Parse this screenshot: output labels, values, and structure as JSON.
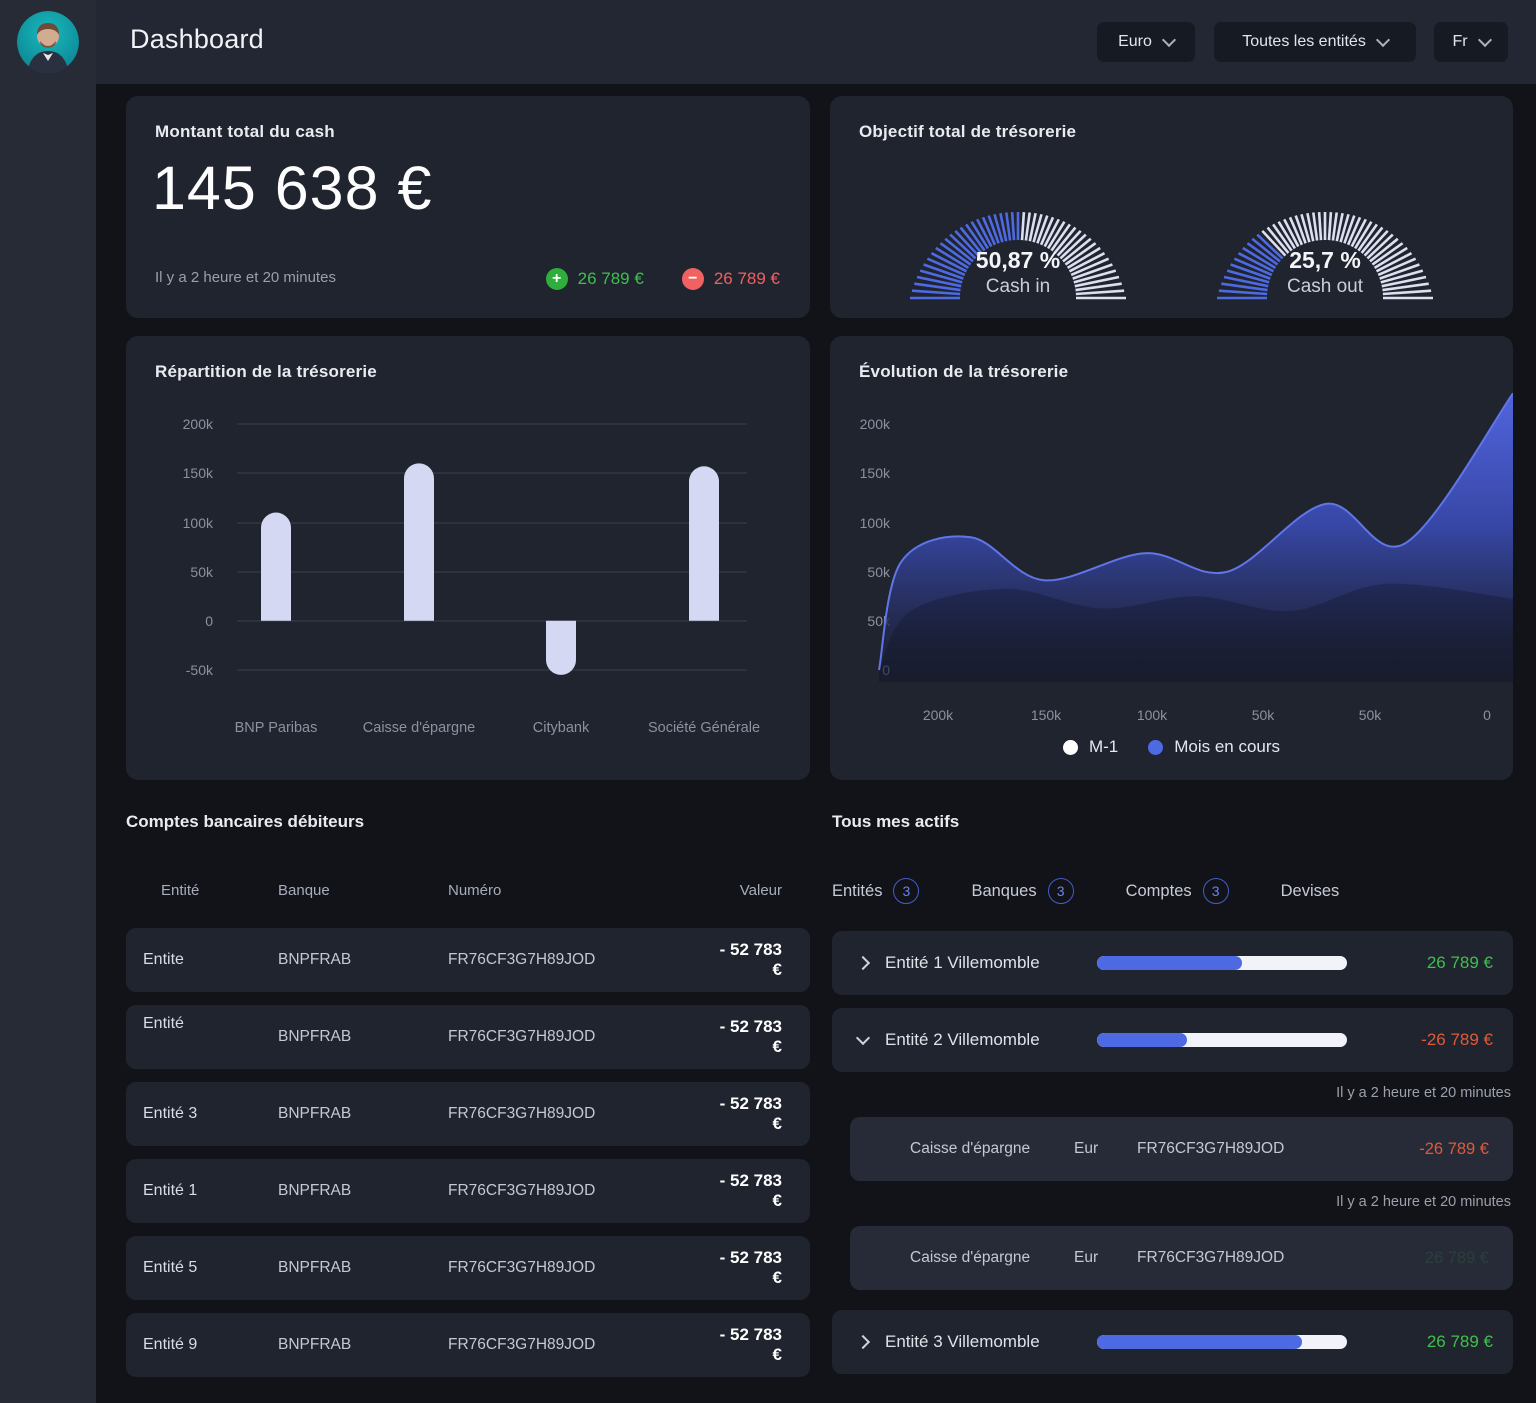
{
  "header": {
    "title": "Dashboard",
    "currency_dropdown": "Euro",
    "entities_dropdown": "Toutes les entités",
    "language_dropdown": "Fr"
  },
  "cash_card": {
    "title": "Montant total du cash",
    "amount": "145 638 €",
    "updated": "Il y a 2 heure et 20 minutes",
    "inflow": "26 789 €",
    "outflow": "26 789 €"
  },
  "debit_table": {
    "title": "Comptes bancaires débiteurs",
    "columns": [
      "Entité",
      "Banque",
      "Numéro",
      "Valeur"
    ],
    "rows": [
      {
        "entity": "Entite",
        "bank": "BNPFRAB",
        "number": "FR76CF3G7H89JOD",
        "value": "- 52 783 €"
      },
      {
        "entity": "Entité",
        "bank": "BNPFRAB",
        "number": "FR76CF3G7H89JOD",
        "value": "- 52 783 €",
        "raised": true
      },
      {
        "entity": "Entité 3",
        "bank": "BNPFRAB",
        "number": "FR76CF3G7H89JOD",
        "value": "- 52 783 €"
      },
      {
        "entity": "Entité 1",
        "bank": "BNPFRAB",
        "number": "FR76CF3G7H89JOD",
        "value": "- 52 783 €"
      },
      {
        "entity": "Entité 5",
        "bank": "BNPFRAB",
        "number": "FR76CF3G7H89JOD",
        "value": "- 52 783 €"
      },
      {
        "entity": "Entité 9",
        "bank": "BNPFRAB",
        "number": "FR76CF3G7H89JOD",
        "value": "- 52 783 €"
      }
    ]
  },
  "assets": {
    "title": "Tous mes actifs",
    "tabs": [
      {
        "label": "Entités",
        "badge": "3"
      },
      {
        "label": "Banques",
        "badge": "3"
      },
      {
        "label": "Comptes",
        "badge": "3"
      },
      {
        "label": "Devises"
      }
    ],
    "rows": [
      {
        "type": "entity",
        "expanded": false,
        "label": "Entité 1 Villemomble",
        "progress_pct": 58,
        "value": "26 789 €",
        "value_color": "green"
      },
      {
        "type": "entity",
        "expanded": true,
        "label": "Entité 2 Villemomble",
        "progress_pct": 36,
        "value": "-26 789 €",
        "value_color": "orange"
      },
      {
        "type": "timestamp",
        "text": "Il y a 2 heure et 20 minutes"
      },
      {
        "type": "account",
        "bank": "Caisse d'épargne",
        "currency": "Eur",
        "number": "FR76CF3G7H89JOD",
        "value": "-26 789 €",
        "value_color": "orange"
      },
      {
        "type": "timestamp",
        "text": "Il y a 2 heure et 20 minutes"
      },
      {
        "type": "account",
        "bank": "Caisse d'épargne",
        "currency": "Eur",
        "number": "FR76CF3G7H89JOD",
        "value": "26 789 €",
        "value_color": "ghost"
      },
      {
        "type": "entity",
        "expanded": false,
        "label": "Entité 3 Villemomble",
        "progress_pct": 82,
        "value": "26 789 €",
        "value_color": "green"
      }
    ]
  },
  "colors": {
    "accent_blue": "#4d6ae3",
    "bar_lavender": "#d5d8f3",
    "positive_green": "#3fbf4e",
    "negative_salmon": "#ef6060",
    "negative_orange": "#dd5b39",
    "gauge_tick_light": "#dcdff0",
    "grid_line": "#3a4050",
    "axis_label": "#8b91a0"
  },
  "chart_data": [
    {
      "type": "gauge",
      "title": "Objectif total de trésorerie",
      "gauges": [
        {
          "display": "50,87 %",
          "label": "Cash in",
          "value_pct": 50.87
        },
        {
          "display": "25,7 %",
          "label": "Cash out",
          "value_pct": 25.7
        }
      ]
    },
    {
      "type": "bar",
      "title": "Répartition de la trésorerie",
      "categories": [
        "BNP Paribas",
        "Caisse d'épargne",
        "Citybank",
        "Société Générale"
      ],
      "values": [
        110000,
        160000,
        -55000,
        157000
      ],
      "ylim": [
        -50000,
        200000
      ],
      "ytick_labels": [
        "200k",
        "150k",
        "100k",
        "50k",
        "0",
        "-50k"
      ],
      "grid": true
    },
    {
      "type": "area",
      "title": "Évolution de la trésorerie",
      "legend_position": "bottom",
      "ytick_labels": [
        "200k",
        "150k",
        "100k",
        "50k",
        "50k",
        "0"
      ],
      "xtick_labels": [
        "200k",
        "150k",
        "100k",
        "50k",
        "50k",
        "0"
      ],
      "series": [
        {
          "name": "M-1",
          "color": "#ffffff",
          "points_k": [
            [
              0,
              0
            ],
            [
              0.05,
              48
            ],
            [
              0.2,
              66
            ],
            [
              0.35,
              50
            ],
            [
              0.5,
              60
            ],
            [
              0.65,
              48
            ],
            [
              0.8,
              70
            ],
            [
              1,
              58
            ]
          ]
        },
        {
          "name": "Mois en cours",
          "color": "#4d6ae3",
          "points_k": [
            [
              0,
              0
            ],
            [
              0.035,
              88
            ],
            [
              0.145,
              108
            ],
            [
              0.26,
              73
            ],
            [
              0.42,
              95
            ],
            [
              0.55,
              80
            ],
            [
              0.705,
              135
            ],
            [
              0.83,
              103
            ],
            [
              1,
              225
            ]
          ]
        }
      ]
    }
  ]
}
